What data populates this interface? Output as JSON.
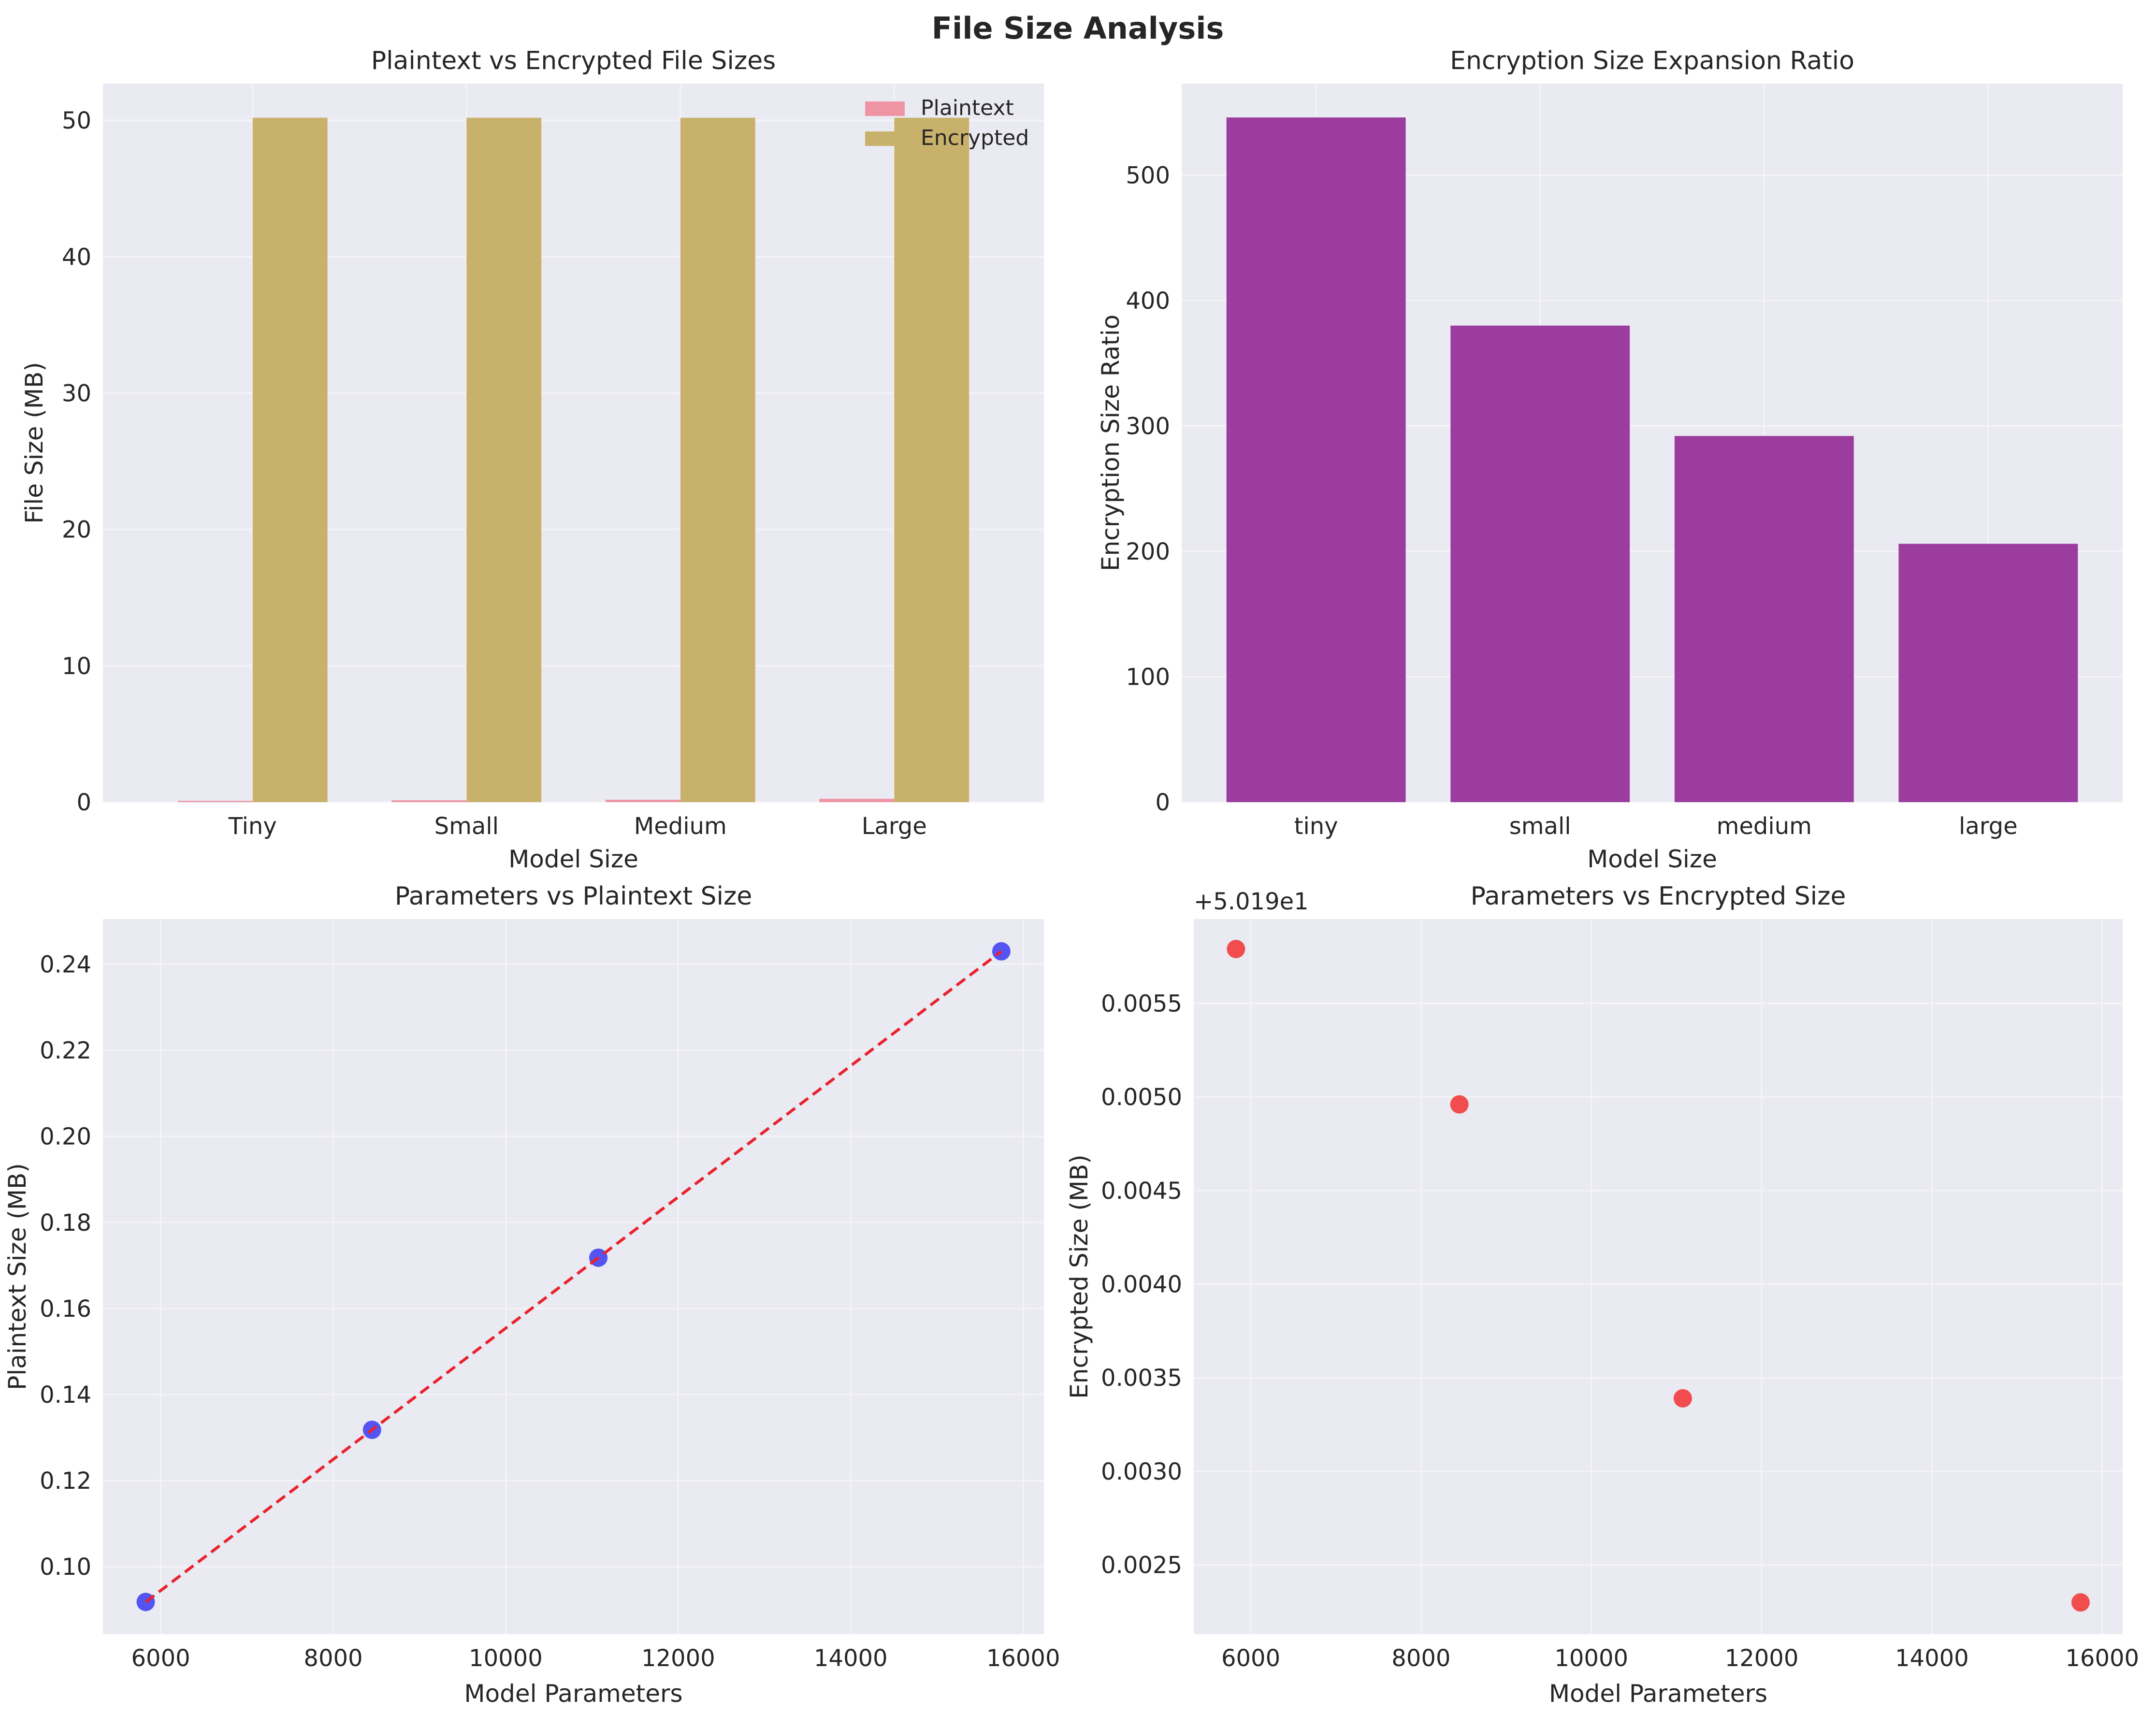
{
  "figure": {
    "suptitle": "File Size Analysis"
  },
  "colors": {
    "axes_bg": "#eaeaf2",
    "grid": "#f4f4f8",
    "plaintext": "#ee94a3",
    "encrypted": "#c8b16b",
    "ratio": "#9b3c9e",
    "scatter_blue": "#3a3af2",
    "scatter_red": "#f23c3c",
    "fit_line": "#e8232e"
  },
  "chart_data": [
    {
      "type": "bar",
      "title": "Plaintext vs Encrypted File Sizes",
      "xlabel": "Model Size",
      "ylabel": "File Size (MB)",
      "categories": [
        "Tiny",
        "Small",
        "Medium",
        "Large"
      ],
      "series": [
        {
          "name": "Plaintext",
          "values": [
            0.092,
            0.132,
            0.172,
            0.243
          ]
        },
        {
          "name": "Encrypted",
          "values": [
            50.196,
            50.195,
            50.193,
            50.192
          ]
        }
      ],
      "ylim": [
        0,
        52.7
      ],
      "yticks": [
        0,
        10,
        20,
        30,
        40,
        50
      ],
      "ytick_labels": [
        "0",
        "10",
        "20",
        "30",
        "40",
        "50"
      ],
      "legend": "top-right",
      "grid": true
    },
    {
      "type": "bar",
      "title": "Encryption Size Expansion Ratio",
      "xlabel": "Model Size",
      "ylabel": "Encryption Size Ratio",
      "categories": [
        "tiny",
        "small",
        "medium",
        "large"
      ],
      "values": [
        546,
        380,
        292,
        206
      ],
      "ylim": [
        0,
        573
      ],
      "yticks": [
        0,
        100,
        200,
        300,
        400,
        500
      ],
      "ytick_labels": [
        "0",
        "100",
        "200",
        "300",
        "400",
        "500"
      ],
      "grid": true
    },
    {
      "type": "scatter",
      "title": "Parameters vs Plaintext Size",
      "xlabel": "Model Parameters",
      "ylabel": "Plaintext Size (MB)",
      "x": [
        5826,
        8450,
        11074,
        15746
      ],
      "y": [
        0.0918,
        0.1318,
        0.1718,
        0.243
      ],
      "fit_line": {
        "x": [
          5826,
          15746
        ],
        "y": [
          0.0918,
          0.243
        ]
      },
      "xlim": [
        5330,
        16240
      ],
      "ylim": [
        0.0843,
        0.2505
      ],
      "xticks": [
        6000,
        8000,
        10000,
        12000,
        14000,
        16000
      ],
      "xtick_labels": [
        "6000",
        "8000",
        "10000",
        "12000",
        "14000",
        "16000"
      ],
      "yticks": [
        0.1,
        0.12,
        0.14,
        0.16,
        0.18,
        0.2,
        0.22,
        0.24
      ],
      "ytick_labels": [
        "0.10",
        "0.12",
        "0.14",
        "0.16",
        "0.18",
        "0.20",
        "0.22",
        "0.24"
      ],
      "grid": true
    },
    {
      "type": "scatter",
      "title": "Parameters vs Encrypted Size",
      "xlabel": "Model Parameters",
      "ylabel": "Encrypted Size (MB)",
      "offset_label": "+5.019e1",
      "x": [
        5826,
        8450,
        11074,
        15746
      ],
      "y": [
        0.00579,
        0.00496,
        0.00339,
        0.0023
      ],
      "xlim": [
        5330,
        16240
      ],
      "ylim": [
        0.00213,
        0.00595
      ],
      "xticks": [
        6000,
        8000,
        10000,
        12000,
        14000,
        16000
      ],
      "xtick_labels": [
        "6000",
        "8000",
        "10000",
        "12000",
        "14000",
        "16000"
      ],
      "yticks": [
        0.0025,
        0.003,
        0.0035,
        0.004,
        0.0045,
        0.005,
        0.0055
      ],
      "ytick_labels": [
        "0.0025",
        "0.0030",
        "0.0035",
        "0.0040",
        "0.0045",
        "0.0050",
        "0.0055"
      ],
      "grid": true
    }
  ]
}
